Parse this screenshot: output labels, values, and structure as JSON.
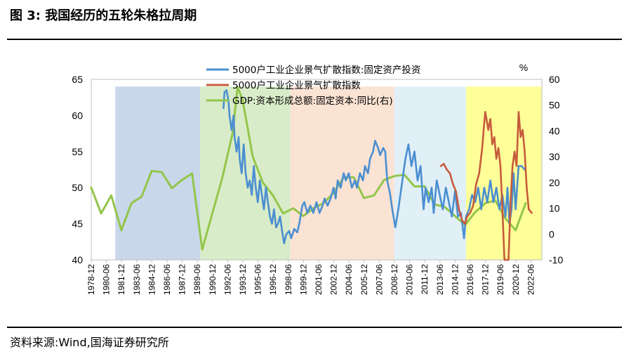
{
  "figure": {
    "title": "图 3:  我国经历的五轮朱格拉周期",
    "source": "资料来源:Wind,国海证券研究所"
  },
  "chart_data": {
    "type": "line",
    "left_axis": {
      "min": 40,
      "max": 65,
      "ticks": [
        "40",
        "45",
        "50",
        "55",
        "60",
        "65"
      ]
    },
    "right_axis": {
      "min": -10,
      "max": 60,
      "ticks": [
        "-10",
        "0",
        "10",
        "20",
        "30",
        "40",
        "50",
        "60"
      ],
      "unit": "%"
    },
    "x_range": [
      1978.92,
      2023.5
    ],
    "x_tick_labels": [
      "1978-12",
      "1980-06",
      "1981-12",
      "1983-06",
      "1984-12",
      "1986-06",
      "1987-12",
      "1989-06",
      "1990-12",
      "1992-06",
      "1993-12",
      "1995-06",
      "1996-12",
      "1998-06",
      "1999-12",
      "2001-06",
      "2002-12",
      "2004-06",
      "2005-12",
      "2007-06",
      "2008-12",
      "2010-06",
      "2011-12",
      "2013-06",
      "2014-12",
      "2016-06",
      "2017-12",
      "2019-06",
      "2020-12",
      "2022-06"
    ],
    "cycle_bands": [
      {
        "start": 1981.3,
        "end": 1989.7,
        "color": "#c9d7ea"
      },
      {
        "start": 1989.7,
        "end": 1998.6,
        "color": "#d9ecc9"
      },
      {
        "start": 1998.6,
        "end": 2008.9,
        "color": "#fbe3d4"
      },
      {
        "start": 2008.9,
        "end": 2016.0,
        "color": "#e1eff6"
      },
      {
        "start": 2016.0,
        "end": 2023.5,
        "color": "#ffff99"
      }
    ],
    "series": [
      {
        "name": "5000户工业企业景气扩散指数:固定资产投资",
        "axis": "left",
        "color": "#4b8fd1",
        "points": [
          [
            1992.0,
            61
          ],
          [
            1992.1,
            63.2
          ],
          [
            1992.3,
            63.5
          ],
          [
            1992.5,
            62
          ],
          [
            1992.6,
            60
          ],
          [
            1992.8,
            58
          ],
          [
            1993.0,
            60
          ],
          [
            1993.1,
            57
          ],
          [
            1993.3,
            55
          ],
          [
            1993.5,
            57
          ],
          [
            1993.6,
            54
          ],
          [
            1993.8,
            52
          ],
          [
            1994.0,
            56
          ],
          [
            1994.2,
            52
          ],
          [
            1994.4,
            50
          ],
          [
            1994.6,
            51
          ],
          [
            1994.8,
            49
          ],
          [
            1995.0,
            53
          ],
          [
            1995.2,
            50
          ],
          [
            1995.4,
            48
          ],
          [
            1995.6,
            51
          ],
          [
            1995.8,
            49
          ],
          [
            1996.0,
            47
          ],
          [
            1996.2,
            50
          ],
          [
            1996.4,
            48
          ],
          [
            1996.6,
            46
          ],
          [
            1996.8,
            45
          ],
          [
            1997.0,
            47
          ],
          [
            1997.2,
            44.5
          ],
          [
            1997.4,
            45
          ],
          [
            1997.6,
            46
          ],
          [
            1997.8,
            44
          ],
          [
            1998.0,
            42.3
          ],
          [
            1998.2,
            43.5
          ],
          [
            1998.5,
            44
          ],
          [
            1998.7,
            43
          ],
          [
            1999.0,
            44.3
          ],
          [
            1999.3,
            43.8
          ],
          [
            1999.5,
            45
          ],
          [
            1999.8,
            47.5
          ],
          [
            2000.0,
            48
          ],
          [
            2000.3,
            46.5
          ],
          [
            2000.6,
            47.5
          ],
          [
            2000.9,
            46.5
          ],
          [
            2001.2,
            48
          ],
          [
            2001.5,
            46.5
          ],
          [
            2001.8,
            47.5
          ],
          [
            2002.0,
            48.5
          ],
          [
            2002.3,
            47.5
          ],
          [
            2002.6,
            48.5
          ],
          [
            2002.9,
            50
          ],
          [
            2003.1,
            48.5
          ],
          [
            2003.3,
            51
          ],
          [
            2003.6,
            50
          ],
          [
            2003.9,
            52
          ],
          [
            2004.1,
            51
          ],
          [
            2004.4,
            52
          ],
          [
            2004.7,
            50
          ],
          [
            2005.0,
            51
          ],
          [
            2005.2,
            50
          ],
          [
            2005.5,
            52
          ],
          [
            2005.8,
            51
          ],
          [
            2006.0,
            53
          ],
          [
            2006.3,
            52
          ],
          [
            2006.5,
            54
          ],
          [
            2006.8,
            55
          ],
          [
            2007.0,
            56.5
          ],
          [
            2007.3,
            55.5
          ],
          [
            2007.5,
            54.5
          ],
          [
            2007.8,
            55.5
          ],
          [
            2008.0,
            55
          ],
          [
            2008.2,
            51
          ],
          [
            2008.5,
            49
          ],
          [
            2008.7,
            47
          ],
          [
            2009.0,
            44.5
          ],
          [
            2009.3,
            47
          ],
          [
            2009.5,
            49
          ],
          [
            2009.8,
            52
          ],
          [
            2010.0,
            54
          ],
          [
            2010.3,
            56
          ],
          [
            2010.6,
            53
          ],
          [
            2010.9,
            55
          ],
          [
            2011.2,
            51
          ],
          [
            2011.5,
            53
          ],
          [
            2011.8,
            47
          ],
          [
            2012.0,
            50
          ],
          [
            2012.3,
            48
          ],
          [
            2012.6,
            50
          ],
          [
            2012.8,
            46.5
          ],
          [
            2013.1,
            51
          ],
          [
            2013.4,
            49
          ],
          [
            2013.7,
            47
          ],
          [
            2014.0,
            50
          ],
          [
            2014.3,
            48
          ],
          [
            2014.6,
            46
          ],
          [
            2014.9,
            49.5
          ],
          [
            2015.2,
            46
          ],
          [
            2015.5,
            46.5
          ],
          [
            2015.8,
            43
          ],
          [
            2016.0,
            46
          ],
          [
            2016.3,
            47
          ],
          [
            2016.6,
            49
          ],
          [
            2016.9,
            48
          ],
          [
            2017.2,
            50
          ],
          [
            2017.5,
            47
          ],
          [
            2017.8,
            50
          ],
          [
            2018.1,
            48
          ],
          [
            2018.4,
            51
          ],
          [
            2018.7,
            48
          ],
          [
            2019.0,
            50
          ],
          [
            2019.3,
            47
          ],
          [
            2019.6,
            49
          ],
          [
            2019.9,
            46
          ],
          [
            2020.1,
            50
          ],
          [
            2020.3,
            45
          ],
          [
            2020.5,
            47
          ],
          [
            2020.7,
            52
          ],
          [
            2020.9,
            47
          ],
          [
            2021.2,
            53
          ],
          [
            2021.5,
            53
          ],
          [
            2021.8,
            52.5
          ]
        ]
      },
      {
        "name": "5000户工业企业景气扩散指数",
        "axis": "left",
        "color": "#c65b3c",
        "points": [
          [
            2013.5,
            53
          ],
          [
            2013.8,
            53.3
          ],
          [
            2014.1,
            52.5
          ],
          [
            2014.4,
            52
          ],
          [
            2014.7,
            50.5
          ],
          [
            2015.0,
            49.5
          ],
          [
            2015.3,
            47
          ],
          [
            2015.6,
            45.5
          ],
          [
            2015.9,
            45
          ],
          [
            2016.1,
            46
          ],
          [
            2016.4,
            46.5
          ],
          [
            2016.7,
            47.5
          ],
          [
            2017.0,
            50.5
          ],
          [
            2017.3,
            52
          ],
          [
            2017.6,
            55.5
          ],
          [
            2017.8,
            59
          ],
          [
            2017.9,
            60.5
          ],
          [
            2018.2,
            58
          ],
          [
            2018.4,
            59.5
          ],
          [
            2018.6,
            56
          ],
          [
            2018.8,
            57
          ],
          [
            2019.0,
            54
          ],
          [
            2019.2,
            55.5
          ],
          [
            2019.4,
            53
          ],
          [
            2019.6,
            47
          ],
          [
            2019.8,
            40
          ],
          [
            2020.0,
            40
          ],
          [
            2020.2,
            40
          ],
          [
            2020.4,
            48
          ],
          [
            2020.6,
            53
          ],
          [
            2020.8,
            55
          ],
          [
            2021.0,
            53
          ],
          [
            2021.2,
            60.5
          ],
          [
            2021.4,
            57
          ],
          [
            2021.6,
            58
          ],
          [
            2021.8,
            55
          ],
          [
            2022.0,
            50
          ],
          [
            2022.2,
            47
          ],
          [
            2022.5,
            46.5
          ]
        ]
      },
      {
        "name": "GDP:资本形成总额:固定资本:同比(右)",
        "axis": "right",
        "color": "#92c64a",
        "points": [
          [
            1978.92,
            18
          ],
          [
            1979.9,
            8
          ],
          [
            1980.9,
            15
          ],
          [
            1981.9,
            1.5
          ],
          [
            1982.9,
            12
          ],
          [
            1983.9,
            14.5
          ],
          [
            1984.9,
            24.5
          ],
          [
            1985.9,
            24
          ],
          [
            1986.9,
            17.8
          ],
          [
            1987.9,
            21
          ],
          [
            1988.9,
            23.5
          ],
          [
            1989.9,
            -6
          ],
          [
            1990.9,
            8
          ],
          [
            1991.9,
            22
          ],
          [
            1992.9,
            39
          ],
          [
            1993.4,
            57
          ],
          [
            1993.9,
            52
          ],
          [
            1994.9,
            30
          ],
          [
            1995.9,
            20
          ],
          [
            1996.9,
            15
          ],
          [
            1997.9,
            8
          ],
          [
            1998.9,
            10
          ],
          [
            1999.9,
            7
          ],
          [
            2000.9,
            10
          ],
          [
            2001.9,
            12
          ],
          [
            2002.9,
            16
          ],
          [
            2003.9,
            22
          ],
          [
            2004.9,
            22
          ],
          [
            2005.9,
            14
          ],
          [
            2006.9,
            15
          ],
          [
            2007.9,
            21
          ],
          [
            2008.9,
            22.5
          ],
          [
            2009.9,
            23
          ],
          [
            2010.9,
            18.5
          ],
          [
            2011.9,
            18.5
          ],
          [
            2012.9,
            11.5
          ],
          [
            2013.9,
            10.5
          ],
          [
            2014.9,
            7
          ],
          [
            2015.9,
            3.5
          ],
          [
            2016.9,
            8.5
          ],
          [
            2017.9,
            12
          ],
          [
            2018.9,
            13
          ],
          [
            2019.9,
            6
          ],
          [
            2020.9,
            1.5
          ],
          [
            2021.9,
            12
          ]
        ]
      }
    ]
  }
}
